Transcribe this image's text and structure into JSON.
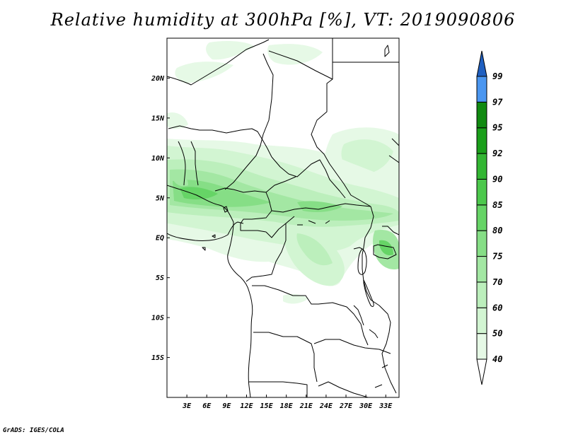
{
  "title": "Relative humidity at 300hPa [%], VT: 2019090806",
  "credit": "GrADS: IGES/COLA",
  "map": {
    "lon_range": [
      0,
      35
    ],
    "lat_range": [
      -20,
      25
    ],
    "lon_ticks": [
      {
        "value": 3,
        "label": "3E"
      },
      {
        "value": 6,
        "label": "6E"
      },
      {
        "value": 9,
        "label": "9E"
      },
      {
        "value": 12,
        "label": "12E"
      },
      {
        "value": 15,
        "label": "15E"
      },
      {
        "value": 18,
        "label": "18E"
      },
      {
        "value": 21,
        "label": "21E"
      },
      {
        "value": 24,
        "label": "24E"
      },
      {
        "value": 27,
        "label": "27E"
      },
      {
        "value": 30,
        "label": "30E"
      },
      {
        "value": 33,
        "label": "33E"
      }
    ],
    "lat_ticks": [
      {
        "value": 20,
        "label": "20N"
      },
      {
        "value": 15,
        "label": "15N"
      },
      {
        "value": 10,
        "label": "10N"
      },
      {
        "value": 5,
        "label": "5N"
      },
      {
        "value": 0,
        "label": "EQ"
      },
      {
        "value": -5,
        "label": "5S"
      },
      {
        "value": -10,
        "label": "10S"
      },
      {
        "value": -15,
        "label": "15S"
      }
    ]
  },
  "colorbar": {
    "levels": [
      {
        "label": "40",
        "color": "#e6f9e6"
      },
      {
        "label": "50",
        "color": "#d2f5d2"
      },
      {
        "label": "60",
        "color": "#bcefbc"
      },
      {
        "label": "70",
        "color": "#a3e7a3"
      },
      {
        "label": "75",
        "color": "#86de86"
      },
      {
        "label": "80",
        "color": "#66d466"
      },
      {
        "label": "85",
        "color": "#4cc84c"
      },
      {
        "label": "90",
        "color": "#33b633"
      },
      {
        "label": "92",
        "color": "#1a9f1a"
      },
      {
        "label": "95",
        "color": "#118a11"
      },
      {
        "label": "97",
        "color": "#4a96f0"
      },
      {
        "label": "99",
        "color": "#1f6fd8"
      }
    ],
    "top_color": "#1f5fc0"
  }
}
